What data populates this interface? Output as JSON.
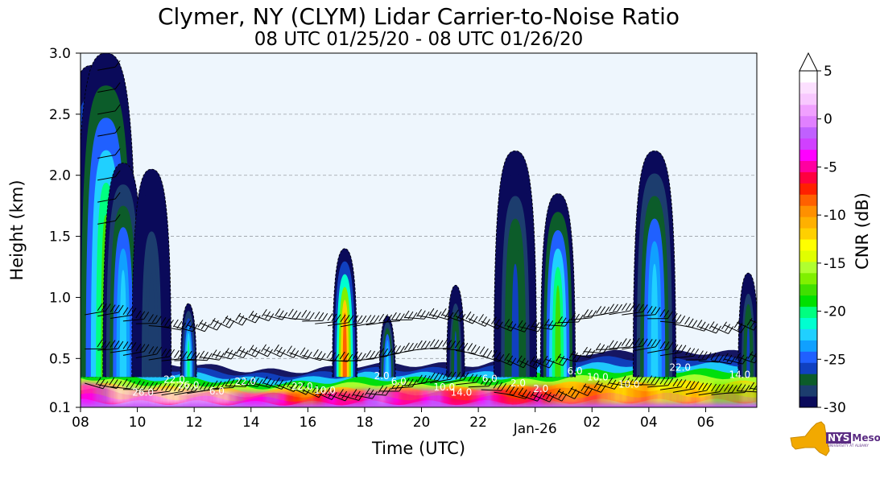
{
  "chart_data": {
    "type": "heatmap",
    "title": "Clymer, NY (CLYM) Lidar Carrier-to-Noise Ratio",
    "subtitle": "08 UTC 01/25/20 - 08 UTC 01/26/20",
    "xlabel": "Time (UTC)",
    "ylabel": "Height (km)",
    "x_range_hours_utc": [
      8,
      31.8
    ],
    "ylim": [
      0.1,
      3.0
    ],
    "x_ticks": [
      {
        "hour": 8,
        "label": "08"
      },
      {
        "hour": 10,
        "label": "10"
      },
      {
        "hour": 12,
        "label": "12"
      },
      {
        "hour": 14,
        "label": "14"
      },
      {
        "hour": 16,
        "label": "16"
      },
      {
        "hour": 18,
        "label": "18"
      },
      {
        "hour": 20,
        "label": "20"
      },
      {
        "hour": 22,
        "label": "22"
      },
      {
        "hour": 24,
        "label": "Jan-26"
      },
      {
        "hour": 26,
        "label": "02"
      },
      {
        "hour": 28,
        "label": "04"
      },
      {
        "hour": 30,
        "label": "06"
      }
    ],
    "y_ticks": [
      "0.1",
      "0.5",
      "1.0",
      "1.5",
      "2.0",
      "2.5",
      "3.0"
    ],
    "grid": "horizontal dashed",
    "colorbar": {
      "label": "CNR (dB)",
      "range": [
        -30,
        5
      ],
      "ticks": [
        "5",
        "0",
        "-5",
        "-10",
        "-15",
        "-20",
        "-25",
        "-30"
      ],
      "extend": "max",
      "colors": [
        "#0a0a5a",
        "#1c3d6e",
        "#0c5c2a",
        "#1040c0",
        "#2060ff",
        "#10a0ff",
        "#20d0ff",
        "#00ffd0",
        "#00ff80",
        "#00e000",
        "#40e000",
        "#80f000",
        "#b0ff30",
        "#e0ff00",
        "#ffff00",
        "#ffd000",
        "#ffb000",
        "#ff9000",
        "#ff6000",
        "#ff2000",
        "#ff0040",
        "#ff00a0",
        "#ff00ff",
        "#d040ff",
        "#c060ff",
        "#e080ff",
        "#f0a0ff",
        "#f8c8ff",
        "#fce0ff",
        "#ffffff"
      ]
    },
    "contour_labels": [
      "26.0",
      "22.0",
      "26.0",
      "6.0",
      "22.0",
      "22.0",
      "10.0",
      "2.0",
      "6.0",
      "10.0",
      "14.0",
      "6.0",
      "2.0",
      "2.0",
      "6.0",
      "10.0",
      "10.0",
      "22.0",
      "14.0"
    ],
    "regions": [
      {
        "hour": 8.4,
        "top_km": 2.9,
        "peak_cnr": -12
      },
      {
        "hour": 8.9,
        "top_km": 3.0,
        "peak_cnr": -18
      },
      {
        "hour": 9.5,
        "top_km": 2.1,
        "peak_cnr": -22
      },
      {
        "hour": 10.5,
        "top_km": 2.05,
        "peak_cnr": -28
      },
      {
        "hour": 11.8,
        "top_km": 0.95,
        "peak_cnr": -20
      },
      {
        "hour": 17.3,
        "top_km": 1.4,
        "peak_cnr": -8
      },
      {
        "hour": 18.8,
        "top_km": 0.85,
        "peak_cnr": -22
      },
      {
        "hour": 21.2,
        "top_km": 1.1,
        "peak_cnr": -26
      },
      {
        "hour": 23.3,
        "top_km": 2.2,
        "peak_cnr": -26
      },
      {
        "hour": 24.8,
        "top_km": 1.85,
        "peak_cnr": -18
      },
      {
        "hour": 28.2,
        "top_km": 2.2,
        "peak_cnr": -22
      },
      {
        "hour": 31.5,
        "top_km": 1.2,
        "peak_cnr": -26
      }
    ],
    "boundary_layer_cnr_profile": [
      {
        "hour": 8,
        "top_km": 0.55,
        "max_cnr": 0
      },
      {
        "hour": 10,
        "top_km": 0.45,
        "max_cnr": 5
      },
      {
        "hour": 12,
        "top_km": 0.45,
        "max_cnr": 5
      },
      {
        "hour": 14,
        "top_km": 0.4,
        "max_cnr": 0
      },
      {
        "hour": 16,
        "top_km": 0.4,
        "max_cnr": -5
      },
      {
        "hour": 18,
        "top_km": 0.45,
        "max_cnr": 0
      },
      {
        "hour": 20,
        "top_km": 0.45,
        "max_cnr": -2
      },
      {
        "hour": 22,
        "top_km": 0.45,
        "max_cnr": -2
      },
      {
        "hour": 24,
        "top_km": 0.5,
        "max_cnr": -5
      },
      {
        "hour": 26,
        "top_km": 0.55,
        "max_cnr": -8
      },
      {
        "hour": 28,
        "top_km": 0.55,
        "max_cnr": -10
      },
      {
        "hour": 30,
        "top_km": 0.55,
        "max_cnr": -12
      },
      {
        "hour": 31.8,
        "top_km": 0.55,
        "max_cnr": -15
      }
    ]
  },
  "logo": {
    "nys": "NYS",
    "name": "Mesonet",
    "sub": "UNIVERSITY AT ALBANY"
  }
}
